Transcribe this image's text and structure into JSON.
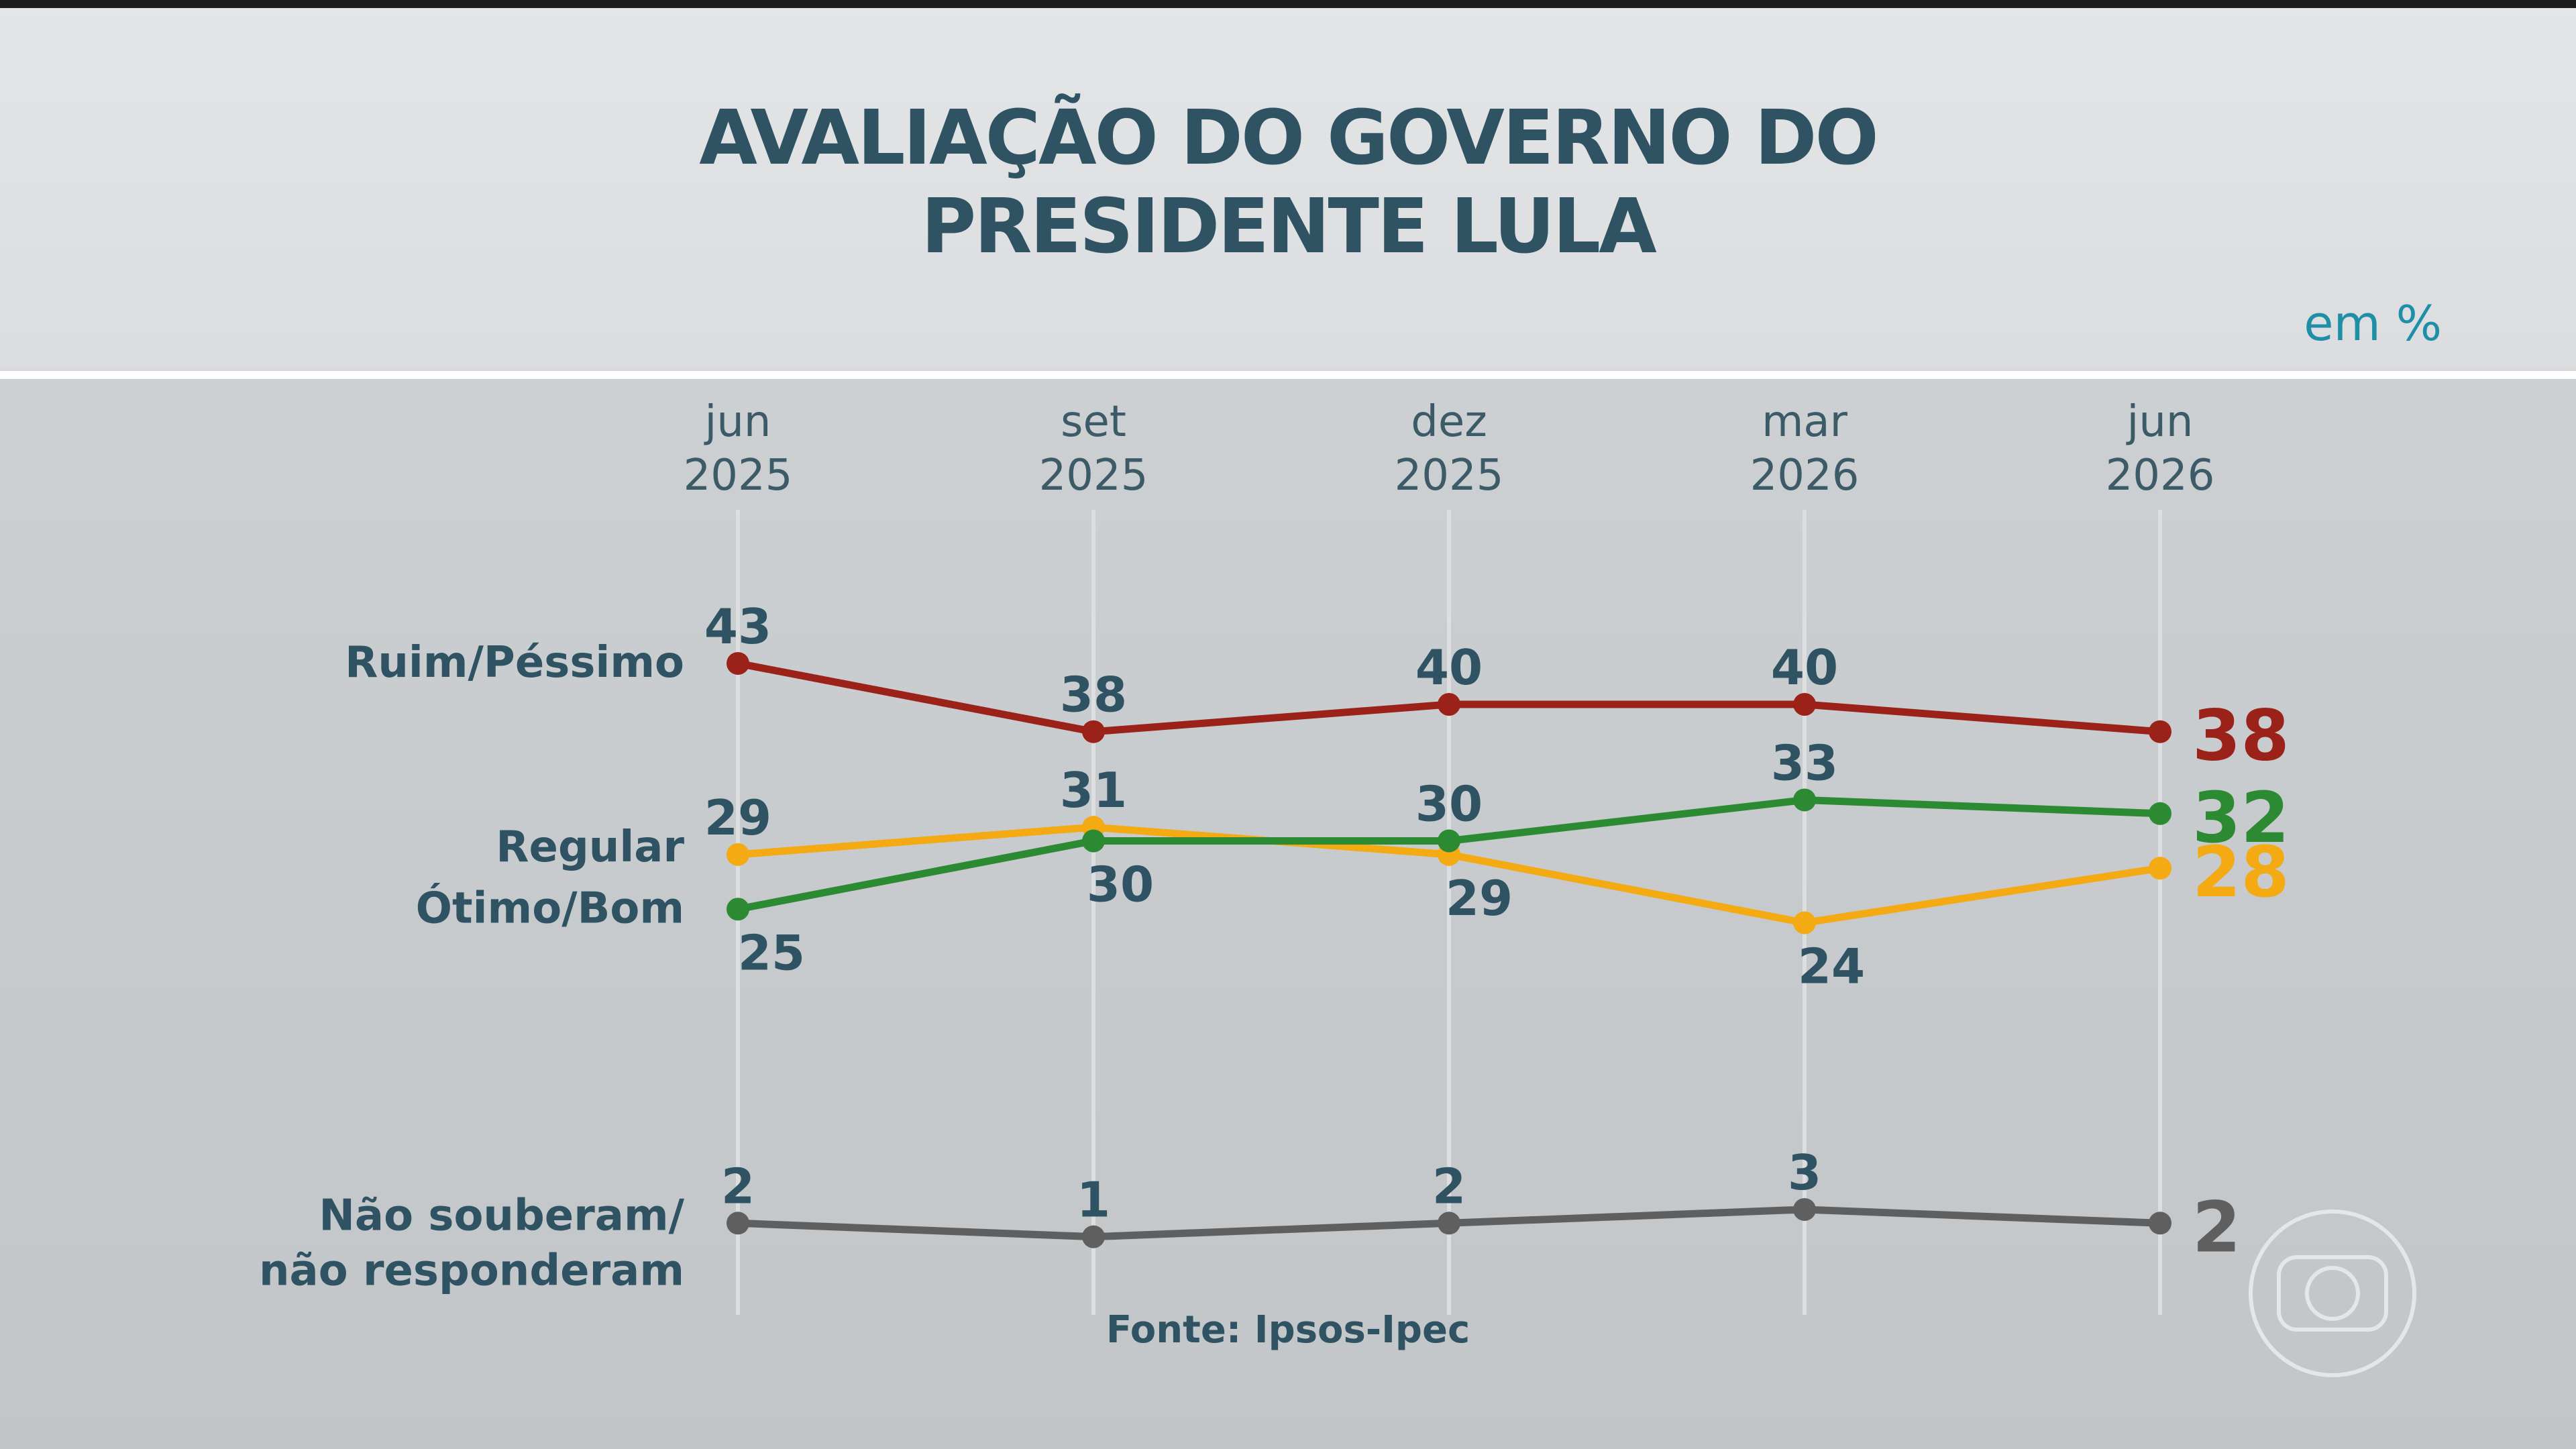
{
  "header": {
    "title_line1": "AVALIAÇÃO DO GOVERNO DO",
    "title_line2": "PRESIDENTE LULA",
    "unit": "em %"
  },
  "source": "Fonte: Ipsos-Ipec",
  "logo": {
    "icon": "globo-logo-icon"
  },
  "chart_data": {
    "type": "line",
    "title": "AVALIAÇÃO DO GOVERNO DO PRESIDENTE LULA",
    "categories": [
      [
        "jun",
        "2025"
      ],
      [
        "set",
        "2025"
      ],
      [
        "dez",
        "2025"
      ],
      [
        "mar",
        "2026"
      ],
      [
        "jun",
        "2026"
      ]
    ],
    "ylim": [
      0,
      45
    ],
    "grid": "vertical lines at each category",
    "legend": "labels left of first point",
    "series": [
      {
        "name": "Ruim/Péssimo",
        "label_lines": [
          "Ruim/Péssimo"
        ],
        "color": "#9b2218",
        "values": [
          43,
          38,
          40,
          40,
          38
        ],
        "label_pos": [
          "above",
          "above",
          "above",
          "above",
          "right"
        ]
      },
      {
        "name": "Regular",
        "label_lines": [
          "Regular"
        ],
        "color": "#f3aa13",
        "values": [
          29,
          31,
          29,
          24,
          28
        ],
        "label_pos": [
          "above",
          "above",
          "below",
          "below",
          "right"
        ]
      },
      {
        "name": "Ótimo/Bom",
        "label_lines": [
          "Ótimo/Bom"
        ],
        "color": "#2c8a33",
        "values": [
          25,
          30,
          30,
          33,
          32
        ],
        "label_pos": [
          "below",
          "below",
          "above",
          "above",
          "right"
        ]
      },
      {
        "name": "Não souberam/ não responderam",
        "label_lines": [
          "Não souberam/",
          "não responderam"
        ],
        "color": "#5f5f5f",
        "values": [
          2,
          1,
          2,
          3,
          2
        ],
        "label_pos": [
          "above",
          "above",
          "above",
          "above",
          "right"
        ]
      }
    ]
  }
}
